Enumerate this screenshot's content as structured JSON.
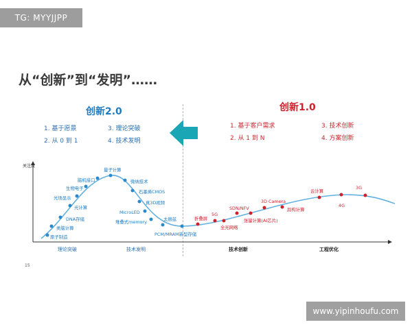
{
  "watermark_top": "TG: MYYJJPP",
  "title": "从“创新”到“发明”……",
  "left_pane": {
    "title": "创新2.0",
    "items": [
      "1. 基于愿景",
      "3. 理论突破",
      "2. 从 0 到 1",
      "4. 技术发明"
    ]
  },
  "right_pane": {
    "title": "创新1.0",
    "items": [
      "1. 基于客户需求",
      "3. 技术创新",
      "2. 从 1 到 N",
      "4. 方案创新"
    ]
  },
  "arrow_icon": "left-arrow-icon",
  "colors": {
    "blue": "#1f7cc2",
    "red": "#d0202b",
    "curve": "#63b0e0",
    "axis": "#333333"
  },
  "chart_data": {
    "type": "line",
    "ylabel": "关注度",
    "xlabels": [
      "理论突破",
      "技术发明",
      "技术创新",
      "工程优化"
    ],
    "points": [
      {
        "label": "原子制造",
        "phase": "left"
      },
      {
        "label": "类脑计算",
        "phase": "left"
      },
      {
        "label": "DNA存储",
        "phase": "left"
      },
      {
        "label": "光计算",
        "phase": "left"
      },
      {
        "label": "光场显示",
        "phase": "left"
      },
      {
        "label": "生物电子",
        "phase": "left"
      },
      {
        "label": "脑机接口",
        "phase": "left"
      },
      {
        "label": "量子计算",
        "phase": "left"
      },
      {
        "label": "微纳技术",
        "phase": "left"
      },
      {
        "label": "石墨烯CMOS",
        "phase": "left"
      },
      {
        "label": "真3D视频",
        "phase": "left"
      },
      {
        "label": "MicroLED",
        "phase": "left"
      },
      {
        "label": "堆叠式memory",
        "phase": "left"
      },
      {
        "label": "太赫兹",
        "phase": "left"
      },
      {
        "label": "PCM/MRAM新型存储",
        "phase": "left"
      },
      {
        "label": "折叠屏",
        "phase": "right"
      },
      {
        "label": "5G",
        "phase": "right"
      },
      {
        "label": "全光网络",
        "phase": "right"
      },
      {
        "label": "SDN/NFV",
        "phase": "right"
      },
      {
        "label": "张量计算(AI芯片)",
        "phase": "right"
      },
      {
        "label": "3D Camera",
        "phase": "right"
      },
      {
        "label": "异构计算",
        "phase": "right"
      },
      {
        "label": "云计算",
        "phase": "right"
      },
      {
        "label": "4G",
        "phase": "right"
      },
      {
        "label": "3G",
        "phase": "right"
      }
    ]
  },
  "page_number": "15",
  "watermark_bottom": "www.yipinhoufu.com"
}
